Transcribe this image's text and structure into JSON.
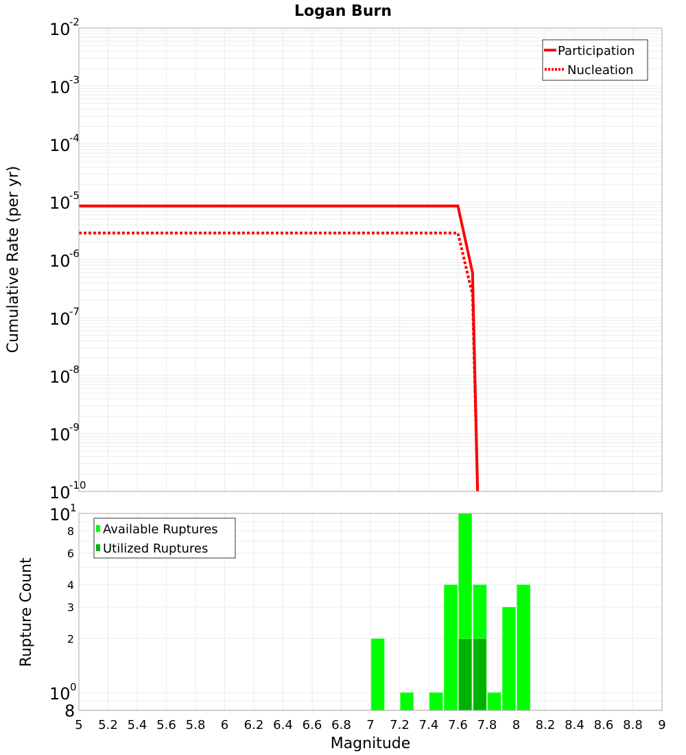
{
  "title": "Logan Burn",
  "colors": {
    "participation": "#ff0000",
    "nucleation": "#ff0000",
    "available": "#00ff00",
    "utilized": "#00b300",
    "grid": "#ebebeb",
    "frame": "#aaaaaa"
  },
  "chart_data": [
    {
      "type": "line",
      "title": "Logan Burn",
      "xlabel": "Magnitude",
      "ylabel": "Cumulative Rate (per yr)",
      "xlim": [
        5,
        9
      ],
      "ylim": [
        1e-10,
        0.01
      ],
      "yscale": "log",
      "grid": true,
      "legend_position": "top-right",
      "x_ticks": [
        5,
        5.2,
        5.4,
        5.6,
        5.8,
        6,
        6.2,
        6.4,
        6.6,
        6.8,
        7,
        7.2,
        7.4,
        7.6,
        7.8,
        8,
        8.2,
        8.4,
        8.6,
        8.8,
        9
      ],
      "y_tick_exponents": [
        -2,
        -3,
        -4,
        -5,
        -6,
        -7,
        -8,
        -9,
        -10
      ],
      "series": [
        {
          "name": "Participation",
          "style": "solid",
          "color": "#ff0000",
          "x": [
            5.0,
            7.6,
            7.7,
            7.735
          ],
          "y": [
            8.5e-06,
            8.5e-06,
            6e-07,
            1e-10
          ]
        },
        {
          "name": "Nucleation",
          "style": "dotted",
          "color": "#ff0000",
          "x": [
            5.0,
            7.6,
            7.7,
            7.735
          ],
          "y": [
            2.9e-06,
            2.9e-06,
            2.5e-07,
            1e-10
          ]
        }
      ]
    },
    {
      "type": "bar",
      "xlabel": "Magnitude",
      "ylabel": "Rupture Count",
      "xlim": [
        5,
        9
      ],
      "ylim": [
        0.8,
        10
      ],
      "yscale": "log",
      "grid": true,
      "legend_position": "top-left",
      "y_ticks": [
        {
          "value": 10,
          "label": "10",
          "sup": "1",
          "big": true
        },
        {
          "value": 8,
          "label": "8",
          "sup": "",
          "big": false
        },
        {
          "value": 6,
          "label": "6",
          "sup": "",
          "big": false
        },
        {
          "value": 4,
          "label": "4",
          "sup": "",
          "big": false
        },
        {
          "value": 3,
          "label": "3",
          "sup": "",
          "big": false
        },
        {
          "value": 2,
          "label": "2",
          "sup": "",
          "big": false
        },
        {
          "value": 1,
          "label": "10",
          "sup": "0",
          "big": true
        },
        {
          "value": 0.8,
          "label": "8",
          "sup": "",
          "big": true
        }
      ],
      "bin_width": 0.1,
      "categories": [
        7.05,
        7.25,
        7.45,
        7.55,
        7.65,
        7.75,
        7.85,
        7.95,
        8.05
      ],
      "series": [
        {
          "name": "Available Ruptures",
          "color": "#00ff00",
          "values": [
            2,
            1,
            1,
            4,
            10,
            4,
            1,
            3,
            4
          ]
        },
        {
          "name": "Utilized Ruptures",
          "color": "#00b300",
          "values": [
            0,
            0,
            0,
            0,
            2,
            2,
            0,
            0,
            0
          ]
        }
      ]
    }
  ],
  "legend_top": {
    "items": [
      {
        "label": "Participation"
      },
      {
        "label": "Nucleation"
      }
    ]
  },
  "legend_bottom": {
    "items": [
      {
        "label": "Available Ruptures"
      },
      {
        "label": "Utilized Ruptures"
      }
    ]
  }
}
